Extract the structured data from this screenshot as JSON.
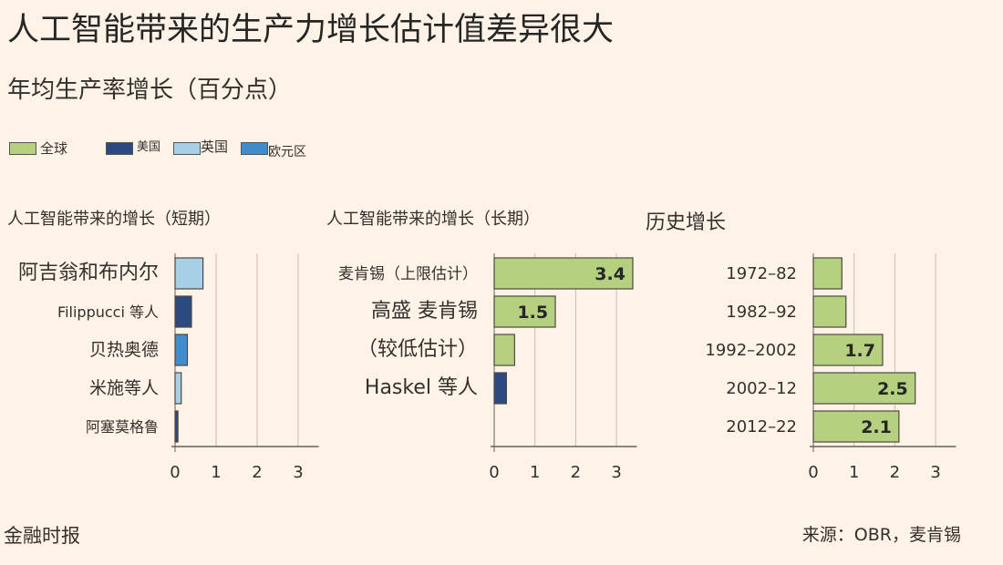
{
  "title": "人工智能带来的生产力增长估计值差异很大",
  "subtitle": "年均生产率增长（百分点）",
  "legend": [
    {
      "label": "全球",
      "color": "#b5d07e"
    },
    {
      "label": "美国",
      "color": "#2c4a80"
    },
    {
      "label": "英国",
      "color": "#a6d0e6"
    },
    {
      "label": "欧元区",
      "color": "#3f8ccc"
    }
  ],
  "footer": {
    "source_org": "金融时报",
    "source": "来源：OBR，麦肯锡"
  },
  "chart_data": [
    {
      "type": "bar",
      "orientation": "horizontal",
      "title": "人工智能带来的增长（短期）",
      "categories": [
        "阿吉翁和布内尔",
        "Filippucci 等人",
        "贝热奥德",
        "米施等人",
        "阿塞莫格鲁"
      ],
      "values": [
        0.68,
        0.4,
        0.3,
        0.15,
        0.07
      ],
      "region": [
        "英国",
        "美国",
        "欧元区",
        "英国",
        "美国"
      ],
      "data_labels": [
        "",
        "",
        "",
        "",
        ""
      ],
      "xlim": [
        0,
        3.5
      ],
      "xticks": [
        0,
        1,
        2,
        3
      ],
      "grid": true
    },
    {
      "type": "bar",
      "orientation": "horizontal",
      "title": "人工智能带来的增长（长期）",
      "categories": [
        "麦肯锡（上限估计）",
        "高盛 麦肯锡",
        "（较低估计）",
        "Haskel 等人"
      ],
      "values": [
        3.4,
        1.5,
        0.5,
        0.3
      ],
      "region": [
        "全球",
        "全球",
        "全球",
        "美国"
      ],
      "data_labels": [
        "3.4",
        "1.5",
        "",
        ""
      ],
      "xlim": [
        0,
        3.5
      ],
      "xticks": [
        0,
        1,
        2,
        3
      ],
      "grid": true
    },
    {
      "type": "bar",
      "orientation": "horizontal",
      "title": "历史增长",
      "categories": [
        "1972–82",
        "1982–92",
        "1992–2002",
        "2002–12",
        "2012–22"
      ],
      "values": [
        0.7,
        0.8,
        1.7,
        2.5,
        2.1
      ],
      "region": [
        "全球",
        "全球",
        "全球",
        "全球",
        "全球"
      ],
      "data_labels": [
        "",
        "",
        "1.7",
        "2.5",
        "2.1"
      ],
      "xlim": [
        0,
        3.5
      ],
      "xticks": [
        0,
        1,
        2,
        3
      ],
      "grid": true
    }
  ]
}
